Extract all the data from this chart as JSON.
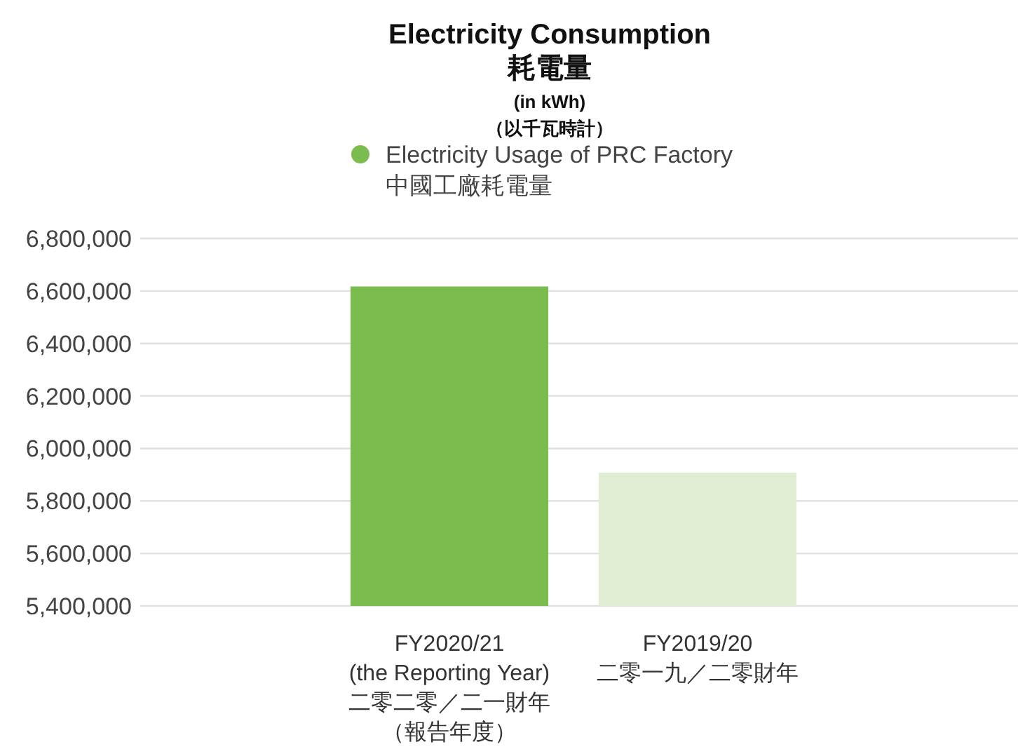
{
  "chart_data": {
    "type": "bar",
    "title": "Electricity Consumption\n耗電量",
    "subtitle": "(in kWh)\n（以千瓦時計）",
    "categories": [
      "FY2020/21\n(the Reporting Year)\n二零二零／二一財年（報告年度）",
      "FY2019/20\n二零一九／二零財年"
    ],
    "series": [
      {
        "name": "Electricity Usage of PRC Factory\n中國工廠耗電量",
        "color": "#7abd4e",
        "colors": [
          "#7abd4e",
          "#e0edd3"
        ],
        "values": [
          6617000,
          5908000
        ]
      }
    ],
    "ylim": [
      5400000,
      6800000
    ],
    "yticks": [
      {
        "value": 5400000,
        "label": "5,400,000"
      },
      {
        "value": 5600000,
        "label": "5,600,000"
      },
      {
        "value": 5800000,
        "label": "5,800,000"
      },
      {
        "value": 6000000,
        "label": "6,000,000"
      },
      {
        "value": 6200000,
        "label": "6,200,000"
      },
      {
        "value": 6400000,
        "label": "6,400,000"
      },
      {
        "value": 6600000,
        "label": "6,600,000"
      },
      {
        "value": 6800000,
        "label": "6,800,000"
      }
    ],
    "grid": "y",
    "legend": "top"
  }
}
